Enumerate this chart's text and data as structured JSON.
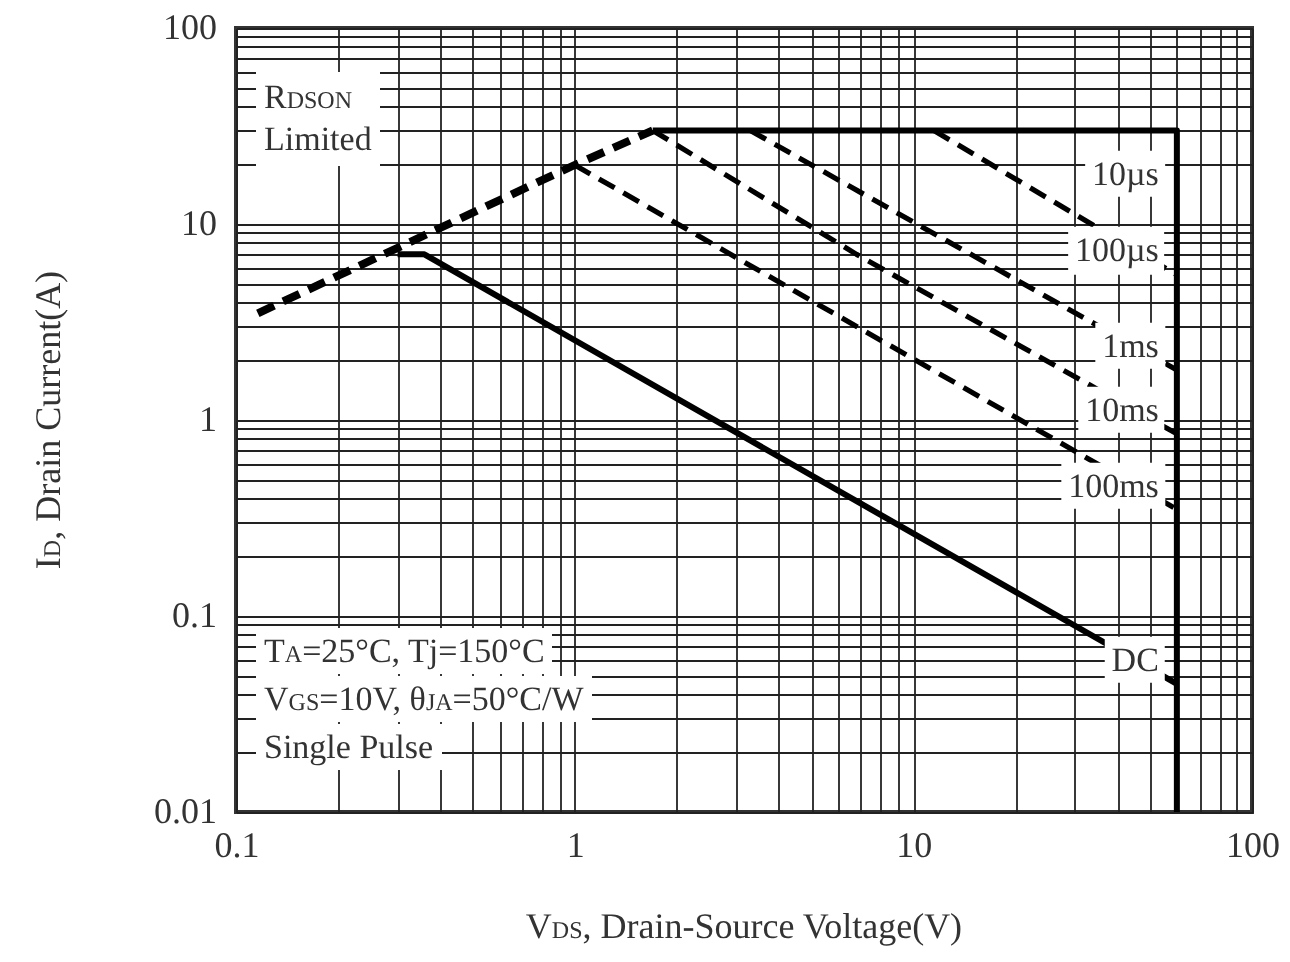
{
  "chart_data": {
    "type": "line",
    "xlabel": "V$_{DS}$, Drain-Source Voltage(V)",
    "ylabel": "I$_{D}$, Drain Current(A)",
    "log": "xy",
    "grid": true,
    "xlim": [
      0.1,
      100
    ],
    "ylim": [
      0.01,
      100
    ],
    "xticks": [
      0.1,
      1,
      10,
      100
    ],
    "yticks": [
      0.01,
      0.1,
      1,
      10,
      100
    ],
    "annotations": [
      "R$_{DSON}$ Limited",
      "T$_{A}$=25°C, Tj=150°C",
      "V$_{GS}$=10V, θ$_{JA}$=50°C/W",
      "Single Pulse"
    ],
    "series": [
      {
        "color": "#000000",
        "line_style": "dashed",
        "x": [
          0.116,
          1,
          1.7
        ],
        "values": [
          3.5,
          20,
          30
        ]
      },
      {
        "name": "10µs",
        "color": "#000000",
        "line_style": "solid",
        "x": [
          1.7,
          60,
          60
        ],
        "values": [
          30,
          30,
          0.01
        ]
      },
      {
        "name": "100µs",
        "color": "#000000",
        "line_style": "dashed",
        "x": [
          11.5,
          60
        ],
        "values": [
          30,
          5.5
        ]
      },
      {
        "name": "1ms",
        "color": "#000000",
        "line_style": "dashed",
        "x": [
          3.3,
          60
        ],
        "values": [
          30,
          1.8
        ]
      },
      {
        "name": "10ms",
        "color": "#000000",
        "line_style": "dashed",
        "x": [
          1.7,
          6.8,
          60
        ],
        "values": [
          30,
          7,
          0.85
        ]
      },
      {
        "name": "100ms",
        "color": "#000000",
        "line_style": "dashed",
        "x": [
          1,
          6.8,
          60
        ],
        "values": [
          20,
          3,
          0.35
        ]
      },
      {
        "name": "DC",
        "color": "#000000",
        "line_style": "solid",
        "x": [
          0.3,
          0.36,
          60
        ],
        "values": [
          7,
          7,
          0.045
        ]
      }
    ]
  }
}
